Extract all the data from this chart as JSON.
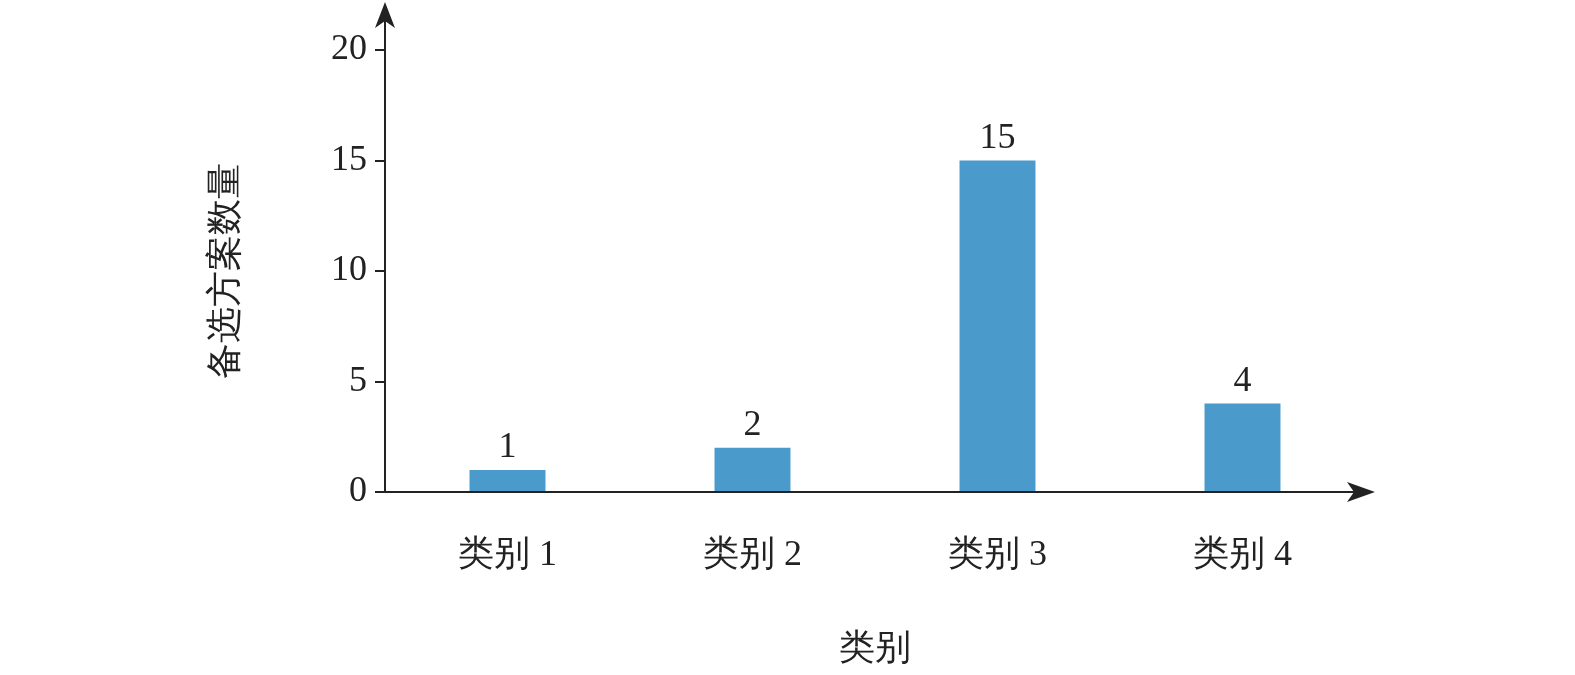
{
  "chart_data": {
    "type": "bar",
    "xlabel": "类别",
    "ylabel": "备选方案数量",
    "categories": [
      "类别 1",
      "类别 2",
      "类别 3",
      "类别 4"
    ],
    "values": [
      1,
      2,
      15,
      4
    ],
    "color": "#4a9acb",
    "ylim": [
      0,
      20
    ],
    "yticks": [
      0,
      5,
      10,
      15,
      20
    ],
    "grid": false,
    "legend": false,
    "data_labels": true
  }
}
